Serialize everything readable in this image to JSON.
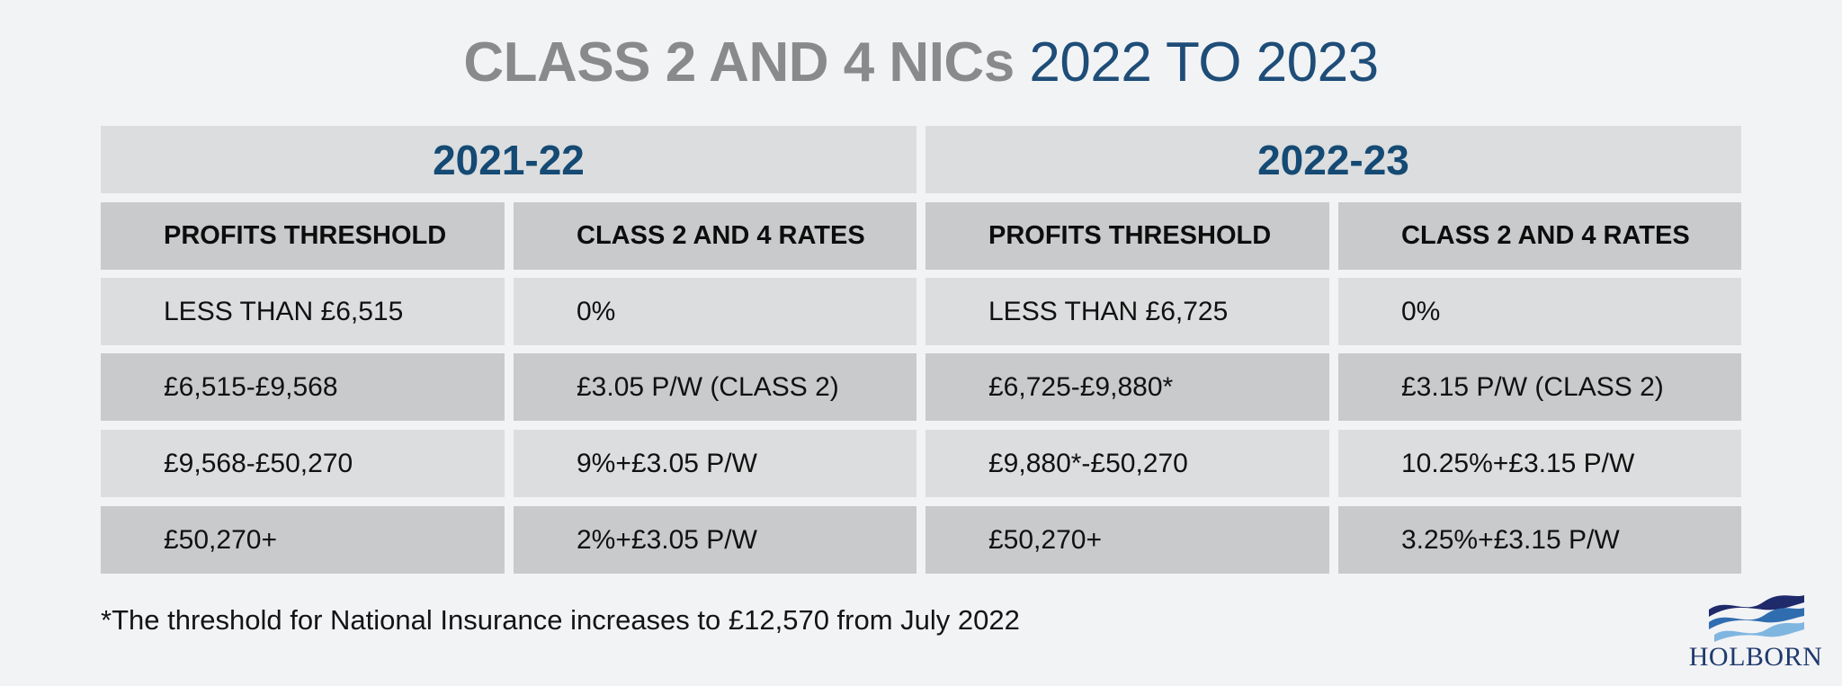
{
  "title": {
    "bold": "CLASS 2 AND 4 NICs",
    "light": "2022 TO 2023"
  },
  "table": {
    "years": [
      "2021-22",
      "2022-23"
    ],
    "headers": [
      "PROFITS THRESHOLD",
      "CLASS 2 AND 4 RATES",
      "PROFITS THRESHOLD",
      "CLASS 2 AND 4 RATES"
    ],
    "rows": [
      [
        "LESS THAN £6,515",
        "0%",
        "LESS THAN £6,725",
        "0%"
      ],
      [
        "£6,515-£9,568",
        "£3.05 P/W (CLASS 2)",
        "£6,725-£9,880*",
        "£3.15 P/W (CLASS 2)"
      ],
      [
        "£9,568-£50,270",
        "9%+£3.05 P/W",
        "£9,880*-£50,270",
        "10.25%+£3.15 P/W"
      ],
      [
        "£50,270+",
        "2%+£3.05 P/W",
        "£50,270+",
        "3.25%+£3.15 P/W"
      ]
    ]
  },
  "footnote": "*The threshold for National Insurance increases to £12,570 from July 2022",
  "logo": {
    "text": "HOLBORN",
    "colors": [
      "#1f2a6b",
      "#2f6db0",
      "#7fb6e0"
    ]
  },
  "colors": {
    "background": "#f2f3f5",
    "title_gray": "#888a8c",
    "title_blue": "#1e4d78",
    "year_blue": "#144a74",
    "row_light": "#dcddde",
    "row_dark": "#c9cacc"
  }
}
